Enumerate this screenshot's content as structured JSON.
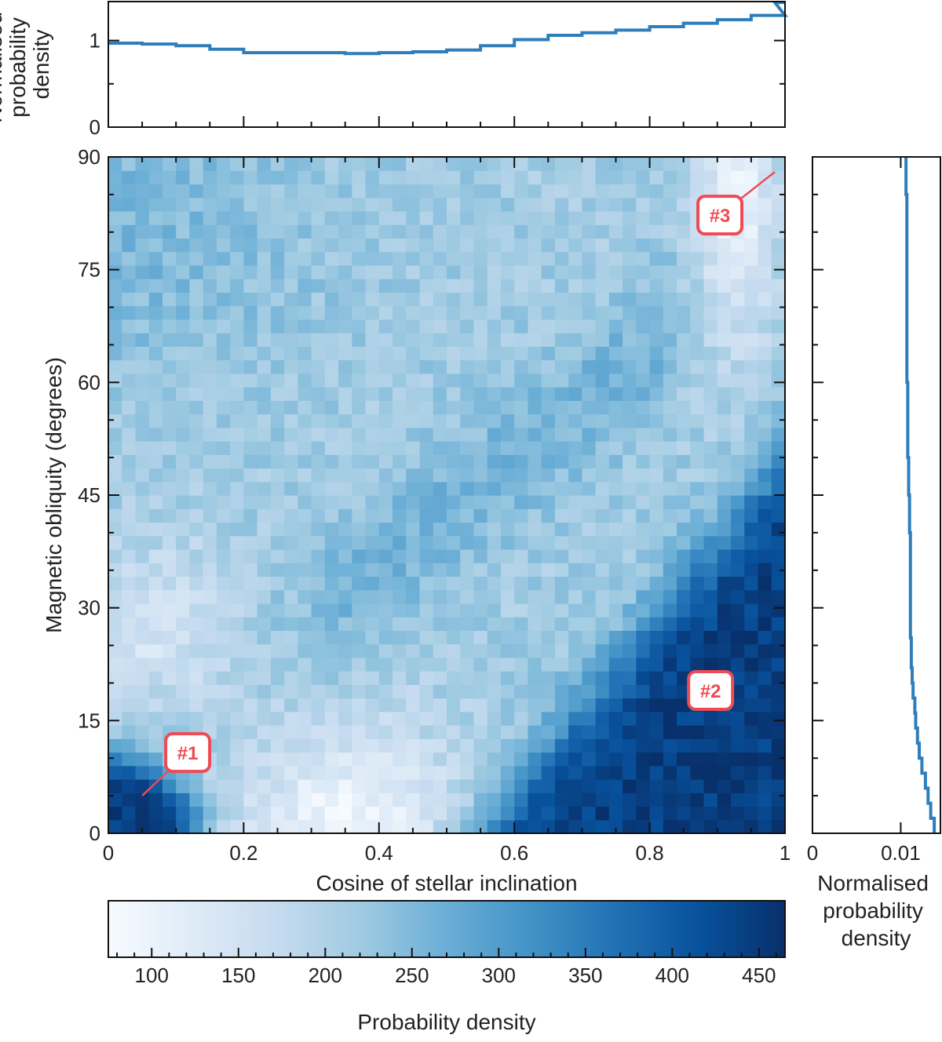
{
  "chart_data": {
    "type": "heatmap",
    "panels": {
      "main": {
        "xlabel": "Cosine of stellar inclination",
        "ylabel": "Magnetic obliquity (degrees)",
        "xlim": [
          0,
          1
        ],
        "ylim": [
          0,
          90
        ],
        "xticks": [
          "0",
          "0.2",
          "0.4",
          "0.6",
          "0.8",
          "1"
        ],
        "xtick_values": [
          0,
          0.2,
          0.4,
          0.6,
          0.8,
          1
        ],
        "yticks": [
          "0",
          "15",
          "30",
          "45",
          "60",
          "75",
          "90"
        ],
        "ytick_values": [
          0,
          15,
          30,
          45,
          60,
          75,
          90
        ],
        "bins_x": 50,
        "bins_y": 50,
        "density_model": "probability density per (cos i, obliquity) bin; highest (~440) in bands near obliquity 0-10 deg at cos i 0-0.15 and cos i 0.55-1 below the diagonal from (0.55,0) to (1,50); lowest (~90) near cos i 0.2-0.5, obliquity 0-15 deg and near cos i 0.9-0.98, obliquity 65-90 deg; mid values (~180-250) elsewhere",
        "annotations": [
          {
            "label": "#1",
            "point": [
              0.05,
              5
            ]
          },
          {
            "label": "#2",
            "point": [
              0.89,
              19
            ]
          },
          {
            "label": "#3",
            "point": [
              0.985,
              88
            ]
          }
        ]
      },
      "top_marginal": {
        "type": "line",
        "ylabel": [
          "Normalised",
          "probability",
          "density"
        ],
        "ylim": [
          0,
          1.45
        ],
        "yticks": [
          "0",
          "1"
        ],
        "ytick_values": [
          0,
          1
        ],
        "x": [
          0,
          0.05,
          0.1,
          0.15,
          0.2,
          0.25,
          0.3,
          0.35,
          0.4,
          0.45,
          0.5,
          0.55,
          0.6,
          0.65,
          0.7,
          0.75,
          0.8,
          0.85,
          0.9,
          0.95,
          1
        ],
        "y": [
          0.97,
          0.96,
          0.94,
          0.9,
          0.86,
          0.86,
          0.86,
          0.85,
          0.86,
          0.87,
          0.89,
          0.94,
          1.01,
          1.06,
          1.09,
          1.12,
          1.16,
          1.2,
          1.24,
          1.29,
          1.44
        ]
      },
      "right_marginal": {
        "type": "line",
        "xlabel": [
          "Normalised",
          "probability",
          "density"
        ],
        "xlim": [
          0,
          0.0145
        ],
        "xticks": [
          "0",
          "0.01"
        ],
        "xtick_values": [
          0,
          0.01
        ],
        "obliquity": [
          0,
          2,
          4,
          6,
          8,
          10,
          12,
          14,
          16,
          18,
          20,
          22,
          24,
          26,
          28,
          30,
          35,
          40,
          45,
          50,
          55,
          60,
          65,
          70,
          75,
          80,
          85,
          90
        ],
        "density": [
          0.0138,
          0.0134,
          0.0131,
          0.0128,
          0.0124,
          0.0121,
          0.0119,
          0.0117,
          0.0116,
          0.0114,
          0.0113,
          0.0112,
          0.0112,
          0.0111,
          0.0111,
          0.0111,
          0.0111,
          0.011,
          0.0109,
          0.0108,
          0.0108,
          0.0107,
          0.0107,
          0.0107,
          0.0107,
          0.0107,
          0.0106,
          0.0106
        ]
      },
      "colorbar": {
        "label": "Probability density",
        "range": [
          75,
          465
        ],
        "ticks": [
          "100",
          "150",
          "200",
          "250",
          "300",
          "350",
          "400",
          "450"
        ],
        "tick_values": [
          100,
          150,
          200,
          250,
          300,
          350,
          400,
          450
        ],
        "colormap": [
          "#f7fbff",
          "#deebf7",
          "#c6dbef",
          "#9ecae1",
          "#6baed6",
          "#4292c6",
          "#2171b5",
          "#08519c",
          "#08306b"
        ]
      }
    }
  }
}
